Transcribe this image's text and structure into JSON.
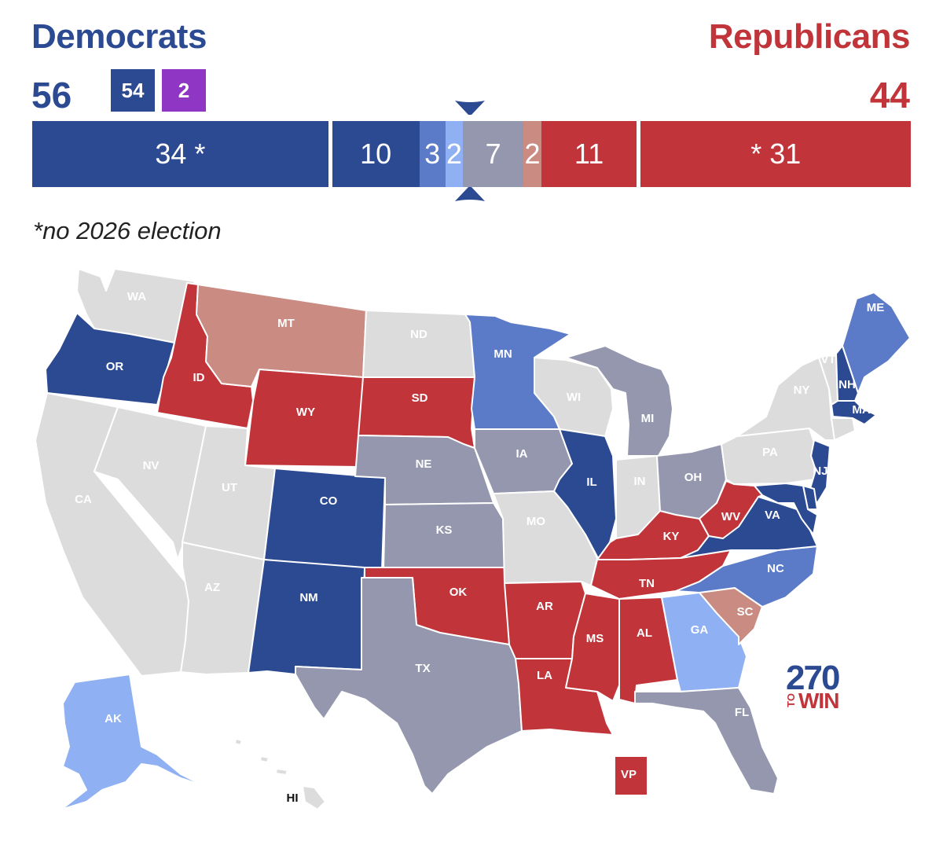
{
  "header": {
    "dem_title": "Democrats",
    "rep_title": "Republicans",
    "dem_total": "56",
    "rep_total": "44",
    "dem_badge": "54",
    "ind_badge": "2"
  },
  "footnote": "*no 2026 election",
  "seat_bar": [
    {
      "label": "34 *",
      "seats": 34,
      "color": "#2c4a92",
      "category": "dem-no-election"
    },
    {
      "label": "10",
      "seats": 10,
      "color": "#2c4a92",
      "category": "safe-dem"
    },
    {
      "label": "3",
      "seats": 3,
      "color": "#5b7bc9",
      "category": "likely-dem"
    },
    {
      "label": "2",
      "seats": 2,
      "color": "#8fb0f2",
      "category": "lean-dem"
    },
    {
      "label": "7",
      "seats": 7,
      "color": "#9497ad",
      "category": "tossup"
    },
    {
      "label": "2",
      "seats": 2,
      "color": "#c98b82",
      "category": "lean-rep"
    },
    {
      "label": "11",
      "seats": 11,
      "color": "#c0343a",
      "category": "safe-rep"
    },
    {
      "label": "* 31",
      "seats": 31,
      "color": "#c0343a",
      "category": "rep-no-election"
    }
  ],
  "colors": {
    "safe_dem": "#2c4a92",
    "likely_dem": "#5b7bc9",
    "lean_dem": "#8fb0f2",
    "tossup": "#9497ad",
    "lean_rep": "#c98b82",
    "safe_rep": "#c0343a",
    "no_election": "#dcdcdc"
  },
  "states": {
    "WA": "no_election",
    "OR": "safe_dem",
    "CA": "no_election",
    "NV": "no_election",
    "ID": "safe_rep",
    "MT": "lean_rep",
    "WY": "safe_rep",
    "UT": "no_election",
    "AZ": "no_election",
    "CO": "safe_dem",
    "NM": "safe_dem",
    "ND": "no_election",
    "SD": "safe_rep",
    "NE": "tossup",
    "KS": "tossup",
    "OK": "safe_rep",
    "TX": "tossup",
    "MN": "likely_dem",
    "IA": "tossup",
    "MO": "no_election",
    "AR": "safe_rep",
    "LA": "safe_rep",
    "WI": "no_election",
    "IL": "safe_dem",
    "MI": "tossup",
    "IN": "no_election",
    "OH": "tossup",
    "KY": "safe_rep",
    "TN": "safe_rep",
    "MS": "safe_rep",
    "AL": "safe_rep",
    "GA": "lean_dem",
    "FL": "tossup",
    "SC": "lean_rep",
    "NC": "likely_dem",
    "VA": "safe_dem",
    "WV": "safe_rep",
    "PA": "no_election",
    "NY": "no_election",
    "NJ": "safe_dem",
    "DE": "safe_dem",
    "MD": "safe_dem",
    "ME": "likely_dem",
    "NH": "safe_dem",
    "VT": "no_election",
    "MA": "safe_dem",
    "CT": "no_election",
    "AK": "lean_dem",
    "HI": "no_election",
    "VP": "safe_rep"
  },
  "logo": {
    "number": "270",
    "to": "TO",
    "win": "WIN"
  }
}
